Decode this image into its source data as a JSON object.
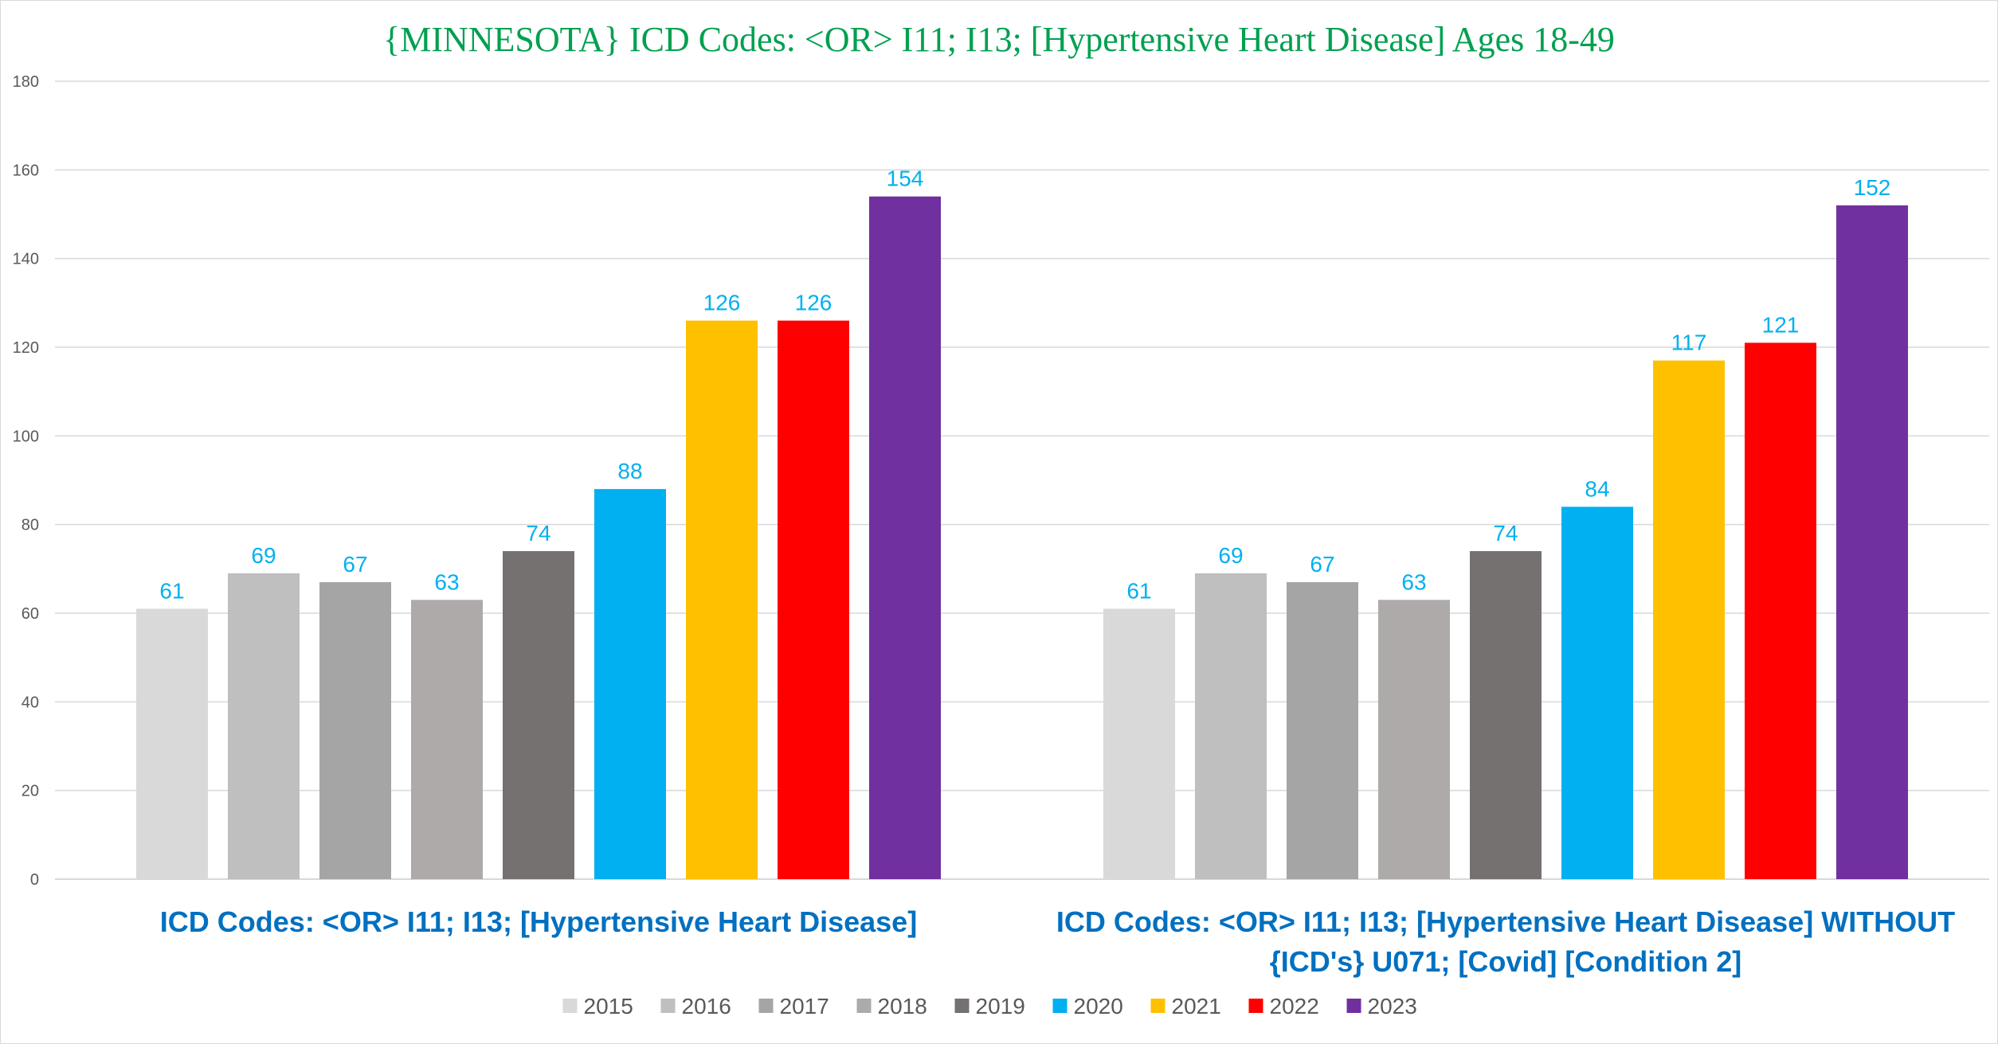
{
  "chart_data": {
    "type": "bar",
    "title": "{MINNESOTA}  ICD Codes: <OR>  I11; I13;  [Hypertensive Heart Disease] Ages 18-49",
    "categories": [
      [
        "ICD Codes: <OR>  I11; I13;  [Hypertensive Heart Disease]"
      ],
      [
        "ICD Codes: <OR>  I11; I13;  [Hypertensive Heart Disease]  WITHOUT",
        "{ICD's} U071;  [Covid]  [Condition 2]"
      ]
    ],
    "series": [
      {
        "name": "2015",
        "color": "#d9d9d9",
        "values": [
          61,
          61
        ]
      },
      {
        "name": "2016",
        "color": "#bfbfbf",
        "values": [
          69,
          69
        ]
      },
      {
        "name": "2017",
        "color": "#a5a5a5",
        "values": [
          67,
          67
        ]
      },
      {
        "name": "2018",
        "color": "#aeaaaa",
        "values": [
          63,
          63
        ]
      },
      {
        "name": "2019",
        "color": "#767171",
        "values": [
          74,
          74
        ]
      },
      {
        "name": "2020",
        "color": "#00b0f0",
        "values": [
          88,
          84
        ]
      },
      {
        "name": "2021",
        "color": "#ffc000",
        "values": [
          126,
          117
        ]
      },
      {
        "name": "2022",
        "color": "#ff0000",
        "values": [
          126,
          121
        ]
      },
      {
        "name": "2023",
        "color": "#7030a0",
        "values": [
          154,
          152
        ]
      }
    ],
    "ylim": [
      0,
      180
    ],
    "yticks": [
      0,
      20,
      40,
      60,
      80,
      100,
      120,
      140,
      160,
      180
    ],
    "grid": true,
    "legend": "bottom",
    "data_label_color": "#00b0f0",
    "title_color": "#00a050",
    "category_label_color": "#0070c0"
  }
}
